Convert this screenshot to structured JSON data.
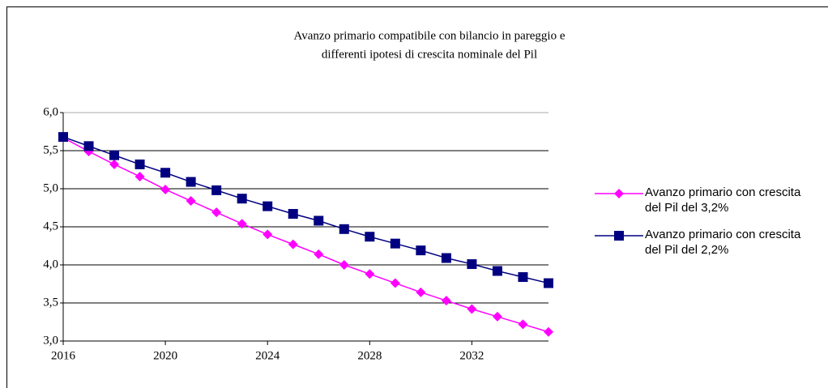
{
  "chart_data": {
    "type": "line",
    "title": [
      "Avanzo primario compatibile con bilancio in pareggio e",
      "differenti ipotesi di crescita nominale del Pil"
    ],
    "x": [
      2016,
      2017,
      2018,
      2019,
      2020,
      2021,
      2022,
      2023,
      2024,
      2025,
      2026,
      2027,
      2028,
      2029,
      2030,
      2031,
      2032,
      2033,
      2034,
      2035
    ],
    "series": [
      {
        "name": "Avanzo primario con crescita del Pil del 3,2%",
        "color": "#ff00ff",
        "marker": "diamond",
        "values": [
          5.67,
          5.49,
          5.32,
          5.16,
          4.99,
          4.84,
          4.69,
          4.54,
          4.4,
          4.27,
          4.14,
          4.0,
          3.88,
          3.76,
          3.64,
          3.53,
          3.42,
          3.32,
          3.22,
          3.12
        ]
      },
      {
        "name": "Avanzo primario con crescita del Pil del 2,2%",
        "color": "#000080",
        "marker": "square",
        "values": [
          5.68,
          5.56,
          5.44,
          5.32,
          5.21,
          5.09,
          4.98,
          4.87,
          4.77,
          4.67,
          4.58,
          4.47,
          4.37,
          4.28,
          4.19,
          4.09,
          4.01,
          3.92,
          3.84,
          3.76
        ]
      }
    ],
    "xlim": [
      2016,
      2035
    ],
    "xticks": [
      2016,
      2020,
      2024,
      2028,
      2032
    ],
    "ylim": [
      3,
      6
    ],
    "yticks": [
      {
        "value": 3,
        "label": "3,0"
      },
      {
        "value": 3.5,
        "label": "3,5"
      },
      {
        "value": 4,
        "label": "4,0"
      },
      {
        "value": 4.5,
        "label": "4,5"
      },
      {
        "value": 5,
        "label": "5,0"
      },
      {
        "value": 5.5,
        "label": "5,5"
      },
      {
        "value": 6,
        "label": "6,0"
      }
    ],
    "grid": true,
    "legend": "right"
  }
}
